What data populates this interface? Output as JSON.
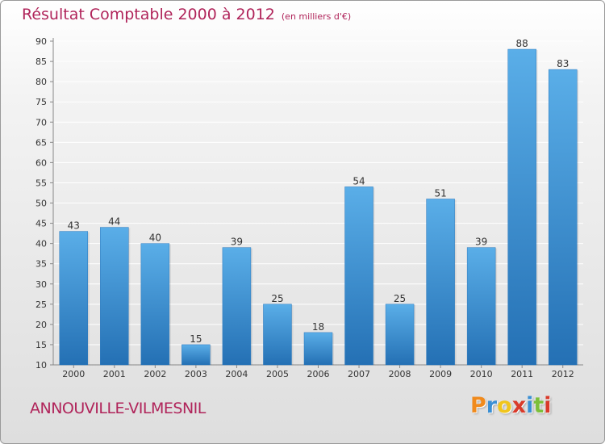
{
  "chart_data": {
    "type": "bar",
    "title": "Résultat Comptable 2000 à 2012",
    "subtitle": "(en milliers d'€)",
    "categories": [
      "2000",
      "2001",
      "2002",
      "2003",
      "2004",
      "2005",
      "2006",
      "2007",
      "2008",
      "2009",
      "2010",
      "2011",
      "2012"
    ],
    "values": [
      43,
      44,
      40,
      15,
      39,
      25,
      18,
      54,
      25,
      51,
      39,
      88,
      83
    ],
    "data_labels": [
      "43",
      "44",
      "40",
      "15",
      "39",
      "25",
      "18",
      "54",
      "25",
      "51",
      "39",
      "88",
      "83"
    ],
    "ylim": [
      10,
      90
    ],
    "yticks": [
      10,
      15,
      20,
      25,
      30,
      35,
      40,
      45,
      50,
      55,
      60,
      65,
      70,
      75,
      80,
      85,
      90
    ],
    "grid": "horizontal",
    "legend": "none",
    "xlabel": "",
    "ylabel": "",
    "colors": {
      "bar_top": "#5aaee8",
      "bar_bottom": "#2470b4",
      "title": "#b0245a",
      "grid": "#ffffff",
      "text": "#333333"
    }
  },
  "footer": {
    "commune": "ANNOUVILLE-VILMESNIL",
    "logo_letters": [
      "P",
      "r",
      "o",
      "x",
      "i",
      "t",
      "i"
    ],
    "logo_colors": [
      "#f08a1c",
      "#3a8fd4",
      "#f0c51c",
      "#d93a2a",
      "#3a8fd4",
      "#7cbf3a",
      "#d93a2a"
    ]
  }
}
